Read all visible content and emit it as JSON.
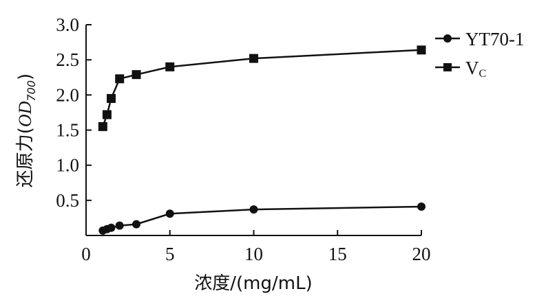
{
  "chart_data": {
    "type": "line",
    "title": "",
    "xlabel": "浓度/(mg/mL)",
    "ylabel_main": "还原力(",
    "ylabel_italic": "OD",
    "ylabel_sub": "700",
    "ylabel_close": ")",
    "xlim": [
      0,
      20
    ],
    "ylim": [
      0,
      3.0
    ],
    "x_ticks": [
      0,
      5,
      10,
      15,
      20
    ],
    "x_tick_labels": [
      "0",
      "5",
      "10",
      "15",
      "20"
    ],
    "y_ticks": [
      0.5,
      1.0,
      1.5,
      2.0,
      2.5,
      3.0
    ],
    "y_tick_labels": [
      "0.5",
      "1.0",
      "1.5",
      "2.0",
      "2.5",
      "3.0"
    ],
    "grid": false,
    "legend_position": "top-right",
    "series": [
      {
        "name": "YT70-1",
        "marker": "circle",
        "x": [
          1,
          1.25,
          1.5,
          2,
          3,
          5,
          10,
          20
        ],
        "y": [
          0.07,
          0.09,
          0.11,
          0.14,
          0.16,
          0.31,
          0.37,
          0.41
        ]
      },
      {
        "name": "Vc",
        "legend_main": "V",
        "legend_sub": "C",
        "marker": "square",
        "x": [
          1,
          1.25,
          1.5,
          2,
          3,
          5,
          10,
          20
        ],
        "y": [
          1.55,
          1.72,
          1.95,
          2.23,
          2.29,
          2.4,
          2.52,
          2.64
        ]
      }
    ]
  }
}
